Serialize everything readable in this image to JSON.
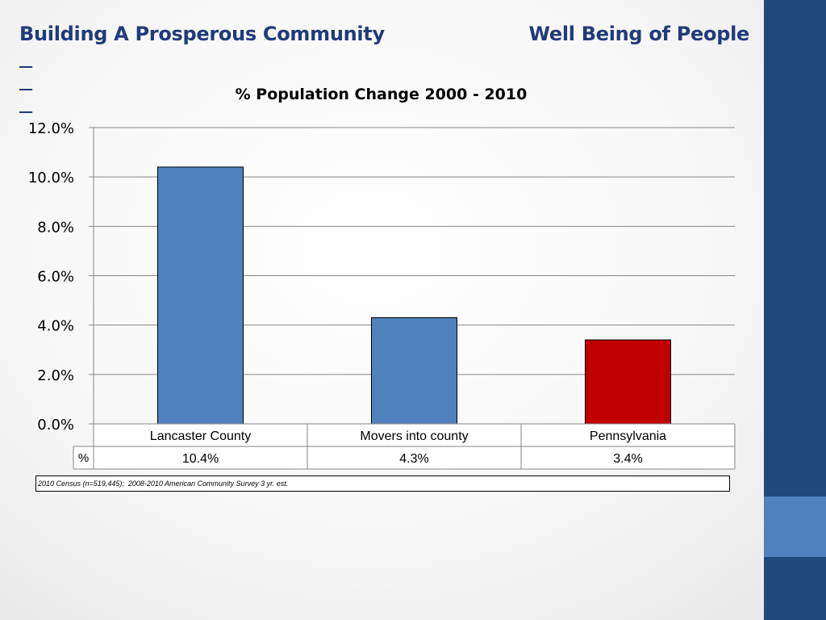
{
  "header": {
    "left_title": "Building A Prosperous Community",
    "right_title": "Well Being of People"
  },
  "colors": {
    "side_bar": "#1f497d",
    "side_bar_accent": "#4f81bd",
    "title_text": "#1f3b7a",
    "bar_default": "#4f81bd",
    "bar_highlight": "#c00000",
    "gridline": "#868686"
  },
  "chart_data": {
    "type": "bar",
    "title": "% Population Change 2000 - 2010",
    "categories": [
      "Lancaster County",
      "Movers into county",
      "Pennsylvania"
    ],
    "series": [
      {
        "name": "%",
        "values": [
          0.104,
          0.043,
          0.034
        ],
        "labels": [
          "10.4%",
          "4.3%",
          "3.4%"
        ]
      }
    ],
    "bar_colors": [
      "#4f81bd",
      "#4f81bd",
      "#c00000"
    ],
    "ylim": [
      0,
      0.12
    ],
    "yticks": [
      "0.0%",
      "2.0%",
      "4.0%",
      "6.0%",
      "8.0%",
      "10.0%",
      "12.0%"
    ],
    "grid": true,
    "legend": "data table below chart"
  },
  "source_note": "2010 Census (n=519,445);  2008-2010 American Community Survey 3 yr. est."
}
